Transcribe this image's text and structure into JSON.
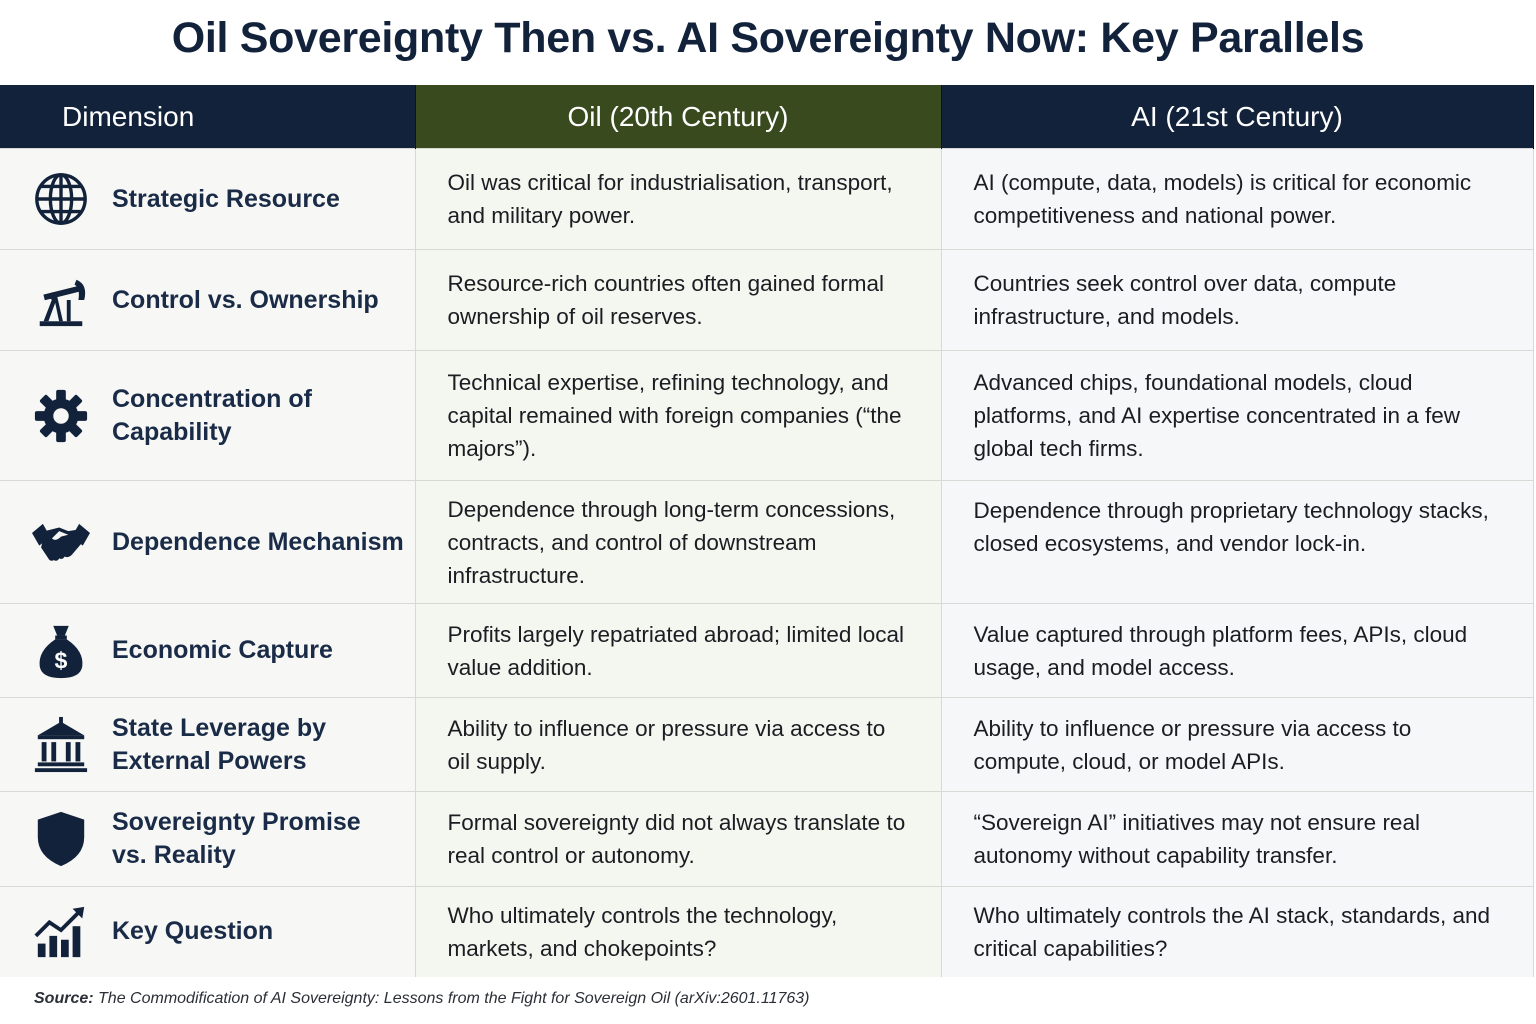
{
  "title": "Oil Sovereignty Then vs. AI Sovereignty Now: Key Parallels",
  "headers": {
    "dimension": "Dimension",
    "oil": "Oil (20th Century)",
    "ai": "AI (21st Century)"
  },
  "colors": {
    "navy": "#13223b",
    "olive": "#3a4a1f"
  },
  "rows": [
    {
      "icon": "globe-icon",
      "dimension": "Strategic Resource",
      "oil": "Oil was critical for industrialisation, transport, and military power.",
      "ai": "AI (compute, data, models) is critical for economic competitiveness and national power."
    },
    {
      "icon": "oil-pump-icon",
      "dimension": "Control vs. Ownership",
      "oil": "Resource-rich countries often gained formal ownership of oil reserves.",
      "ai": "Countries seek control over data, compute infrastructure, and models."
    },
    {
      "icon": "gear-icon",
      "dimension": "Concentration of Capability",
      "oil": "Technical expertise, refining technology, and capital remained with foreign companies (“the majors”).",
      "ai": "Advanced chips, foundational models, cloud platforms, and AI expertise concentrated in a few global tech firms."
    },
    {
      "icon": "handshake-icon",
      "dimension": "Dependence Mechanism",
      "oil": "Dependence through long-term concessions, contracts, and control of downstream infrastructure.",
      "ai": "Dependence through proprietary technology stacks, closed ecosystems, and vendor lock-in."
    },
    {
      "icon": "money-bag-icon",
      "dimension": "Economic Capture",
      "oil": "Profits largely repatriated abroad; limited local value addition.",
      "ai": "Value captured through platform fees, APIs, cloud usage, and model access."
    },
    {
      "icon": "government-building-icon",
      "dimension": "State Leverage by External Powers",
      "oil": "Ability to influence or pressure via access to oil supply.",
      "ai": "Ability to influence or pressure via access to compute, cloud, or model APIs."
    },
    {
      "icon": "shield-icon",
      "dimension": "Sovereignty Promise vs. Reality",
      "oil": "Formal sovereignty did not always translate to real control or autonomy.",
      "ai": "“Sovereign AI” initiatives may not ensure real autonomy without capability transfer."
    },
    {
      "icon": "growth-chart-icon",
      "dimension": "Key Question",
      "oil": "Who ultimately controls the technology, markets, and chokepoints?",
      "ai": "Who ultimately controls the AI stack, standards, and critical capabilities?"
    }
  ],
  "source": {
    "label": "Source:",
    "text": "The Commodification of AI Sovereignty: Lessons from the Fight for Sovereign Oil (arXiv:2601.11763)"
  }
}
